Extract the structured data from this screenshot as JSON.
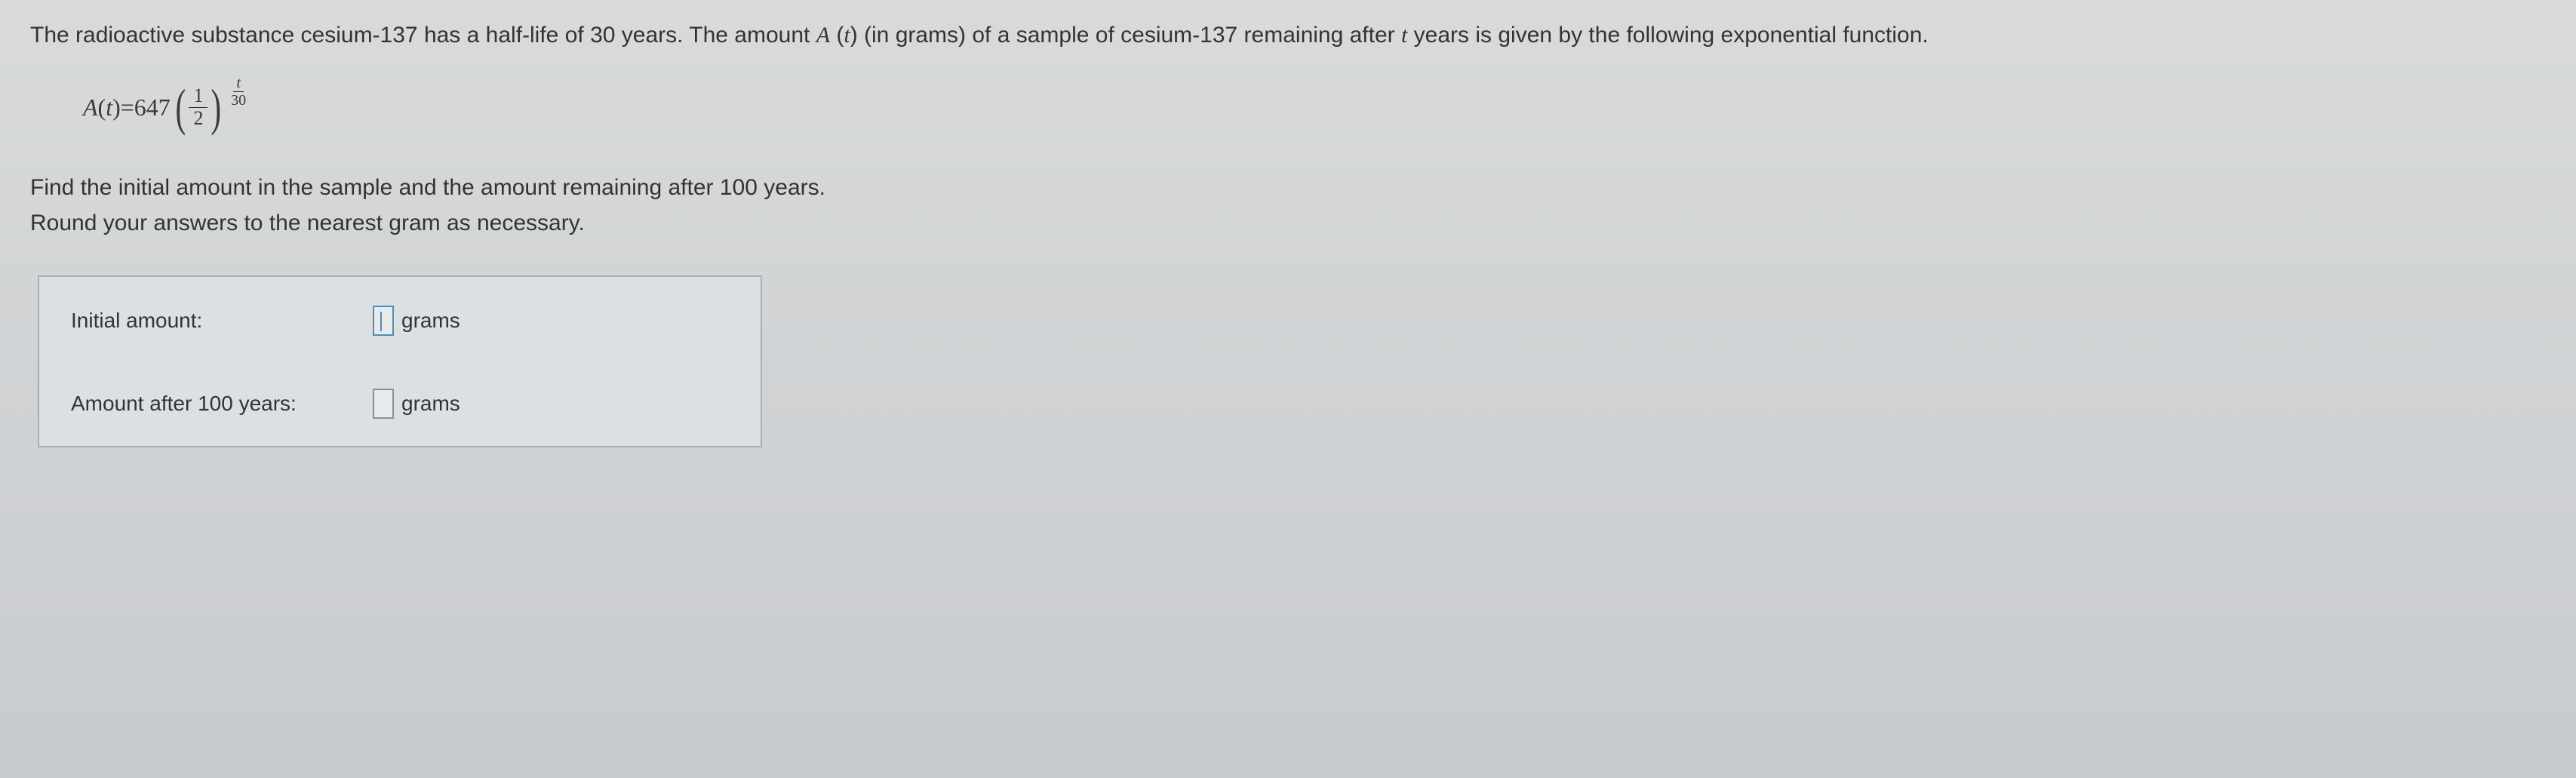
{
  "problem": {
    "intro_part1": "The radioactive substance cesium-137 has a half-life of ",
    "half_life": "30",
    "intro_part2": " years. The amount ",
    "func_name": "A",
    "func_var": "t",
    "intro_part3": " (in grams) of a sample of cesium-137 remaining after ",
    "var_name": "t",
    "intro_part4": " years is given by the following exponential function."
  },
  "formula": {
    "lhs_func": "A",
    "lhs_var": "t",
    "equals": " = ",
    "coefficient": "647",
    "base_num": "1",
    "base_den": "2",
    "exp_num": "t",
    "exp_den": "30"
  },
  "instructions": {
    "line1_part1": "Find the initial amount in the sample and the amount remaining after ",
    "years": "100",
    "line1_part2": " years.",
    "line2": "Round your answers to the nearest gram as necessary."
  },
  "answers": {
    "row1_label": "Initial amount:",
    "row1_unit": "grams",
    "row2_label": "Amount after 100 years:",
    "row2_unit": "grams"
  },
  "styling": {
    "background_top": "#d8dadb",
    "background_bottom": "#c8cbce",
    "text_color": "#333333",
    "body_fontsize": 30,
    "formula_fontsize": 32,
    "answerbox_bg": "#dde0e2",
    "answerbox_border": "#a8aeb4",
    "inputbox_border": "#8a8f95",
    "inputbox_active_border": "#4a90b8",
    "font_family_body": "Arial",
    "font_family_math": "Times New Roman"
  }
}
